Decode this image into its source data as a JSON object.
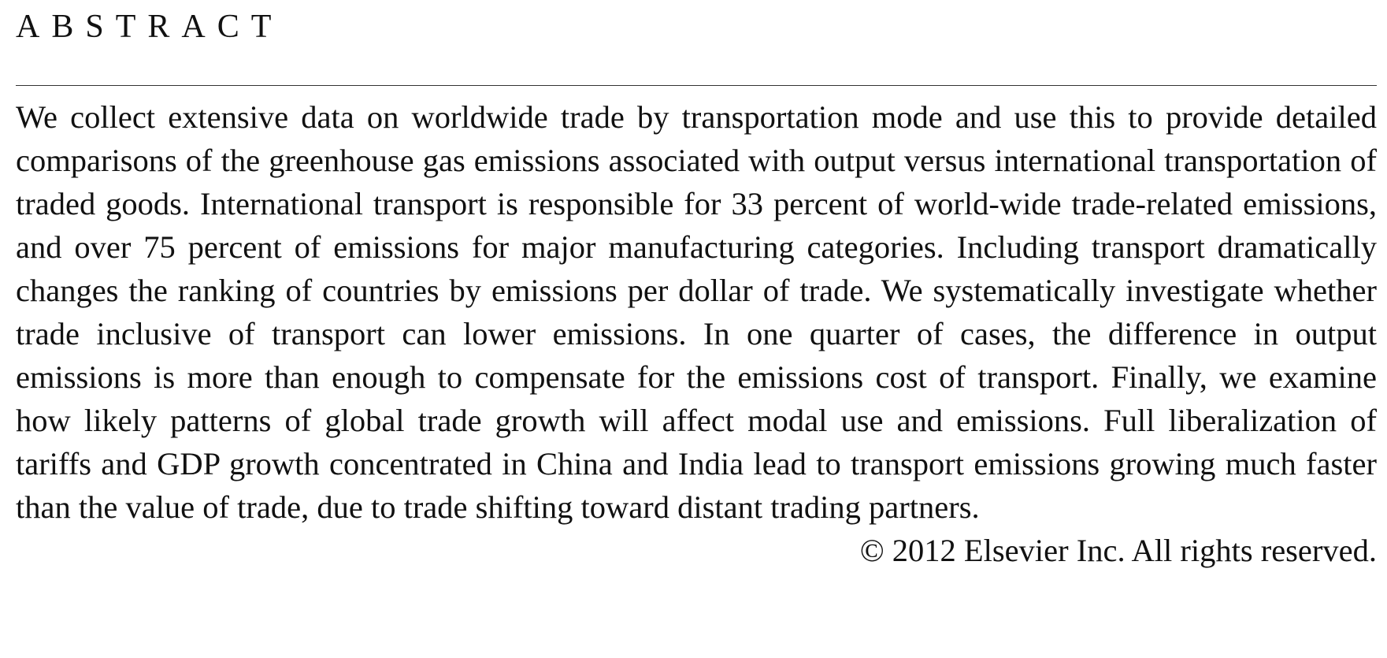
{
  "abstract": {
    "heading": "ABSTRACT",
    "body": "We collect extensive data on worldwide trade by transportation mode and use this to provide detailed comparisons of the greenhouse gas emissions associated with output versus international transportation of traded goods. International transport is responsible for 33 percent of world-wide trade-related emissions, and over 75 percent of emissions for major manufacturing categories. Including transport dramatically changes the ranking of countries by emissions per dollar of trade. We systematically investigate whether trade inclusive of transport can lower emissions. In one quarter of cases, the difference in output emissions is more than enough to compensate for the emissions cost of transport. Finally, we examine how likely patterns of global trade growth will affect modal use and emissions. Full liberalization of tariffs and GDP growth concentrated in China and India lead to transport emissions growing much faster than the value of trade, due to trade shifting toward distant trading partners.",
    "copyright": "© 2012 Elsevier Inc. All rights reserved."
  }
}
